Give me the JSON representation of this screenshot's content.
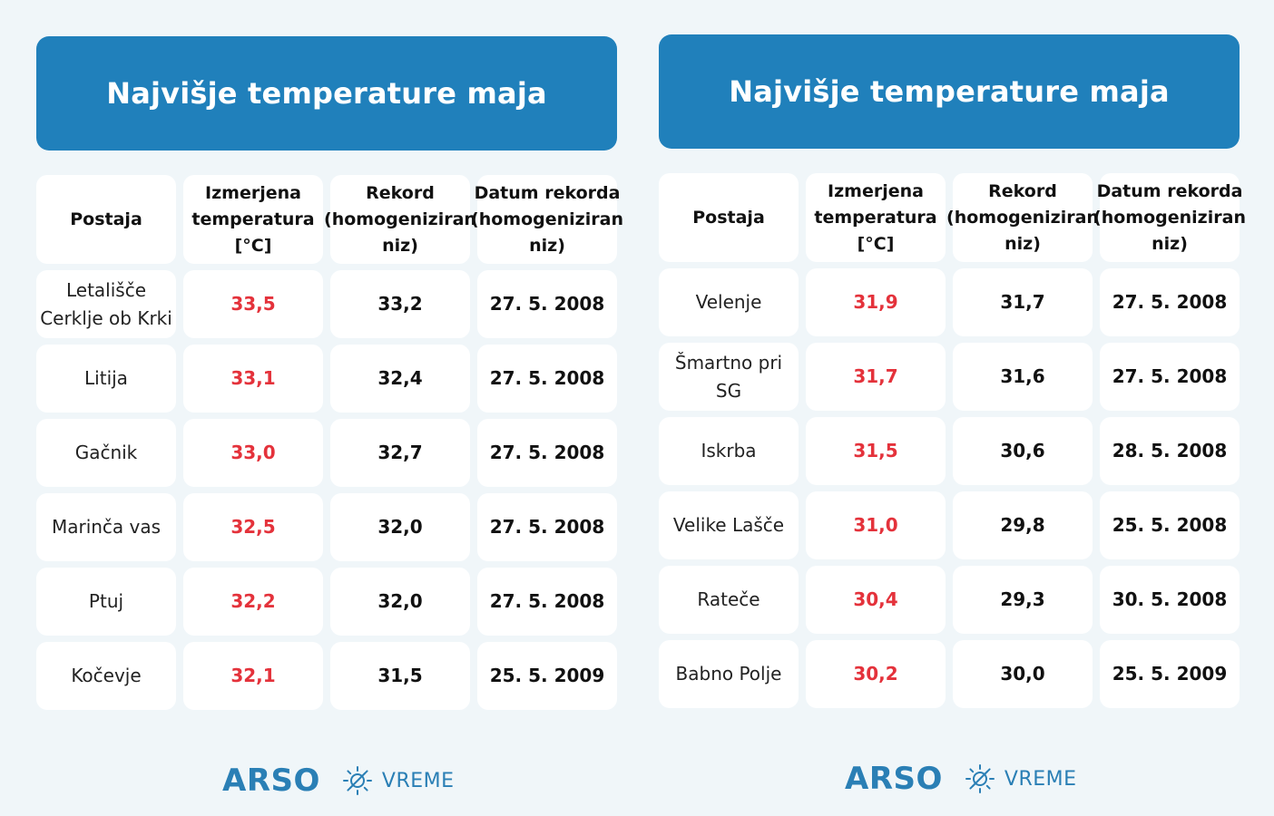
{
  "colors": {
    "accent": "#2080bb",
    "record_red": "#e4323b",
    "logo_blue": "#2a7fb5",
    "background": "#f0f6f9"
  },
  "left_table": {
    "title": "Najvišje temperature maja",
    "headers": {
      "station": "Postaja",
      "measured": "Izmerjena temperatura [°C]",
      "record": "Rekord (homogeniziran niz)",
      "record_date": "Datum rekorda (homogeniziran niz)"
    },
    "rows": [
      {
        "station": "Letališče Cerklje ob Krki",
        "measured": "33,5",
        "record": "33,2",
        "date": "27. 5. 2008"
      },
      {
        "station": "Litija",
        "measured": "33,1",
        "record": "32,4",
        "date": "27. 5. 2008"
      },
      {
        "station": "Gačnik",
        "measured": "33,0",
        "record": "32,7",
        "date": "27. 5. 2008"
      },
      {
        "station": "Marinča vas",
        "measured": "32,5",
        "record": "32,0",
        "date": "27. 5. 2008"
      },
      {
        "station": "Ptuj",
        "measured": "32,2",
        "record": "32,0",
        "date": "27. 5. 2008"
      },
      {
        "station": "Kočevje",
        "measured": "32,1",
        "record": "31,5",
        "date": "25. 5. 2009"
      }
    ],
    "footer": {
      "brand": "ARSO",
      "icon": "sun-icon",
      "sub": "VREME"
    }
  },
  "right_table": {
    "title": "Najvišje temperature maja",
    "headers": {
      "station": "Postaja",
      "measured": "Izmerjena temperatura [°C]",
      "record": "Rekord (homogeniziran niz)",
      "record_date": "Datum rekorda (homogeniziran niz)"
    },
    "rows": [
      {
        "station": "Velenje",
        "measured": "31,9",
        "record": "31,7",
        "date": "27. 5. 2008"
      },
      {
        "station": "Šmartno pri SG",
        "measured": "31,7",
        "record": "31,6",
        "date": "27. 5. 2008"
      },
      {
        "station": "Iskrba",
        "measured": "31,5",
        "record": "30,6",
        "date": "28. 5. 2008"
      },
      {
        "station": "Velike Lašče",
        "measured": "31,0",
        "record": "29,8",
        "date": "25. 5. 2008"
      },
      {
        "station": "Rateče",
        "measured": "30,4",
        "record": "29,3",
        "date": "30. 5. 2008"
      },
      {
        "station": "Babno Polje",
        "measured": "30,2",
        "record": "30,0",
        "date": "25. 5. 2009"
      }
    ],
    "footer": {
      "brand": "ARSO",
      "icon": "sun-icon",
      "sub": "VREME"
    }
  }
}
